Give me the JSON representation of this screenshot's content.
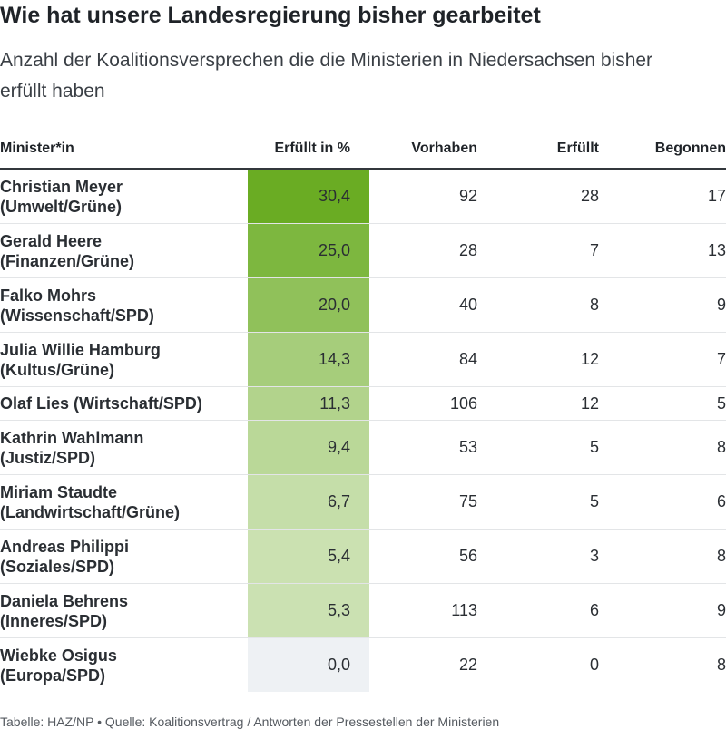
{
  "title": "Wie hat unsere Landesregierung bisher gearbeitet",
  "subtitle": "Anzahl der Koalitionsversprechen die die Ministerien in Niedersachsen bisher erfüllt haben",
  "footer": "Tabelle: HAZ/NP • Quelle: Koalitionsvertrag / Antworten der Pressestellen der Ministerien",
  "colors": {
    "heat_high": "#6aac23",
    "heat_low": "#e8f1dc",
    "heat_zero": "#eef1f4"
  },
  "chart_data": {
    "type": "table",
    "columns": [
      "Minister*in",
      "Erfüllt in %",
      "Vorhaben",
      "Erfüllt",
      "Begonnen"
    ],
    "heat_column": "Erfüllt in %",
    "rows": [
      {
        "name_line1": "Christian Meyer",
        "name_line2": "(Umwelt/Grüne)",
        "pct": "30,4",
        "pct_value": 30.4,
        "vorhaben": "92",
        "erfuellt": "28",
        "begonnen": "17"
      },
      {
        "name_line1": "Gerald Heere",
        "name_line2": "(Finanzen/Grüne)",
        "pct": "25,0",
        "pct_value": 25.0,
        "vorhaben": "28",
        "erfuellt": "7",
        "begonnen": "13"
      },
      {
        "name_line1": "Falko Mohrs",
        "name_line2": "(Wissenschaft/SPD)",
        "pct": "20,0",
        "pct_value": 20.0,
        "vorhaben": "40",
        "erfuellt": "8",
        "begonnen": "9"
      },
      {
        "name_line1": "Julia Willie Hamburg",
        "name_line2": "(Kultus/Grüne)",
        "pct": "14,3",
        "pct_value": 14.3,
        "vorhaben": "84",
        "erfuellt": "12",
        "begonnen": "7"
      },
      {
        "name_line1": "Olaf Lies (Wirtschaft/SPD)",
        "name_line2": "",
        "pct": "11,3",
        "pct_value": 11.3,
        "vorhaben": "106",
        "erfuellt": "12",
        "begonnen": "5"
      },
      {
        "name_line1": "Kathrin Wahlmann",
        "name_line2": "(Justiz/SPD)",
        "pct": "9,4",
        "pct_value": 9.4,
        "vorhaben": "53",
        "erfuellt": "5",
        "begonnen": "8"
      },
      {
        "name_line1": "Miriam Staudte",
        "name_line2": "(Landwirtschaft/Grüne)",
        "pct": "6,7",
        "pct_value": 6.7,
        "vorhaben": "75",
        "erfuellt": "5",
        "begonnen": "6"
      },
      {
        "name_line1": "Andreas Philippi",
        "name_line2": "(Soziales/SPD)",
        "pct": "5,4",
        "pct_value": 5.4,
        "vorhaben": "56",
        "erfuellt": "3",
        "begonnen": "8"
      },
      {
        "name_line1": "Daniela Behrens",
        "name_line2": "(Inneres/SPD)",
        "pct": "5,3",
        "pct_value": 5.3,
        "vorhaben": "113",
        "erfuellt": "6",
        "begonnen": "9"
      },
      {
        "name_line1": "Wiebke Osigus",
        "name_line2": "(Europa/SPD)",
        "pct": "0,0",
        "pct_value": 0.0,
        "vorhaben": "22",
        "erfuellt": "0",
        "begonnen": "8"
      }
    ]
  }
}
